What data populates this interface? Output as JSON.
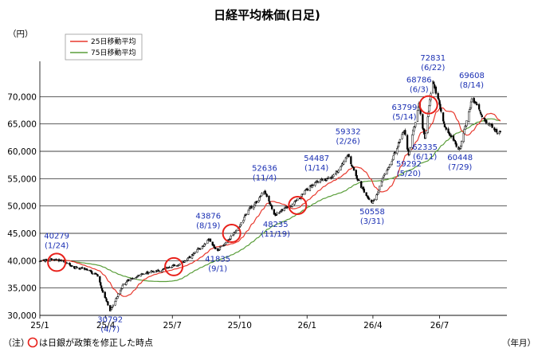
{
  "chart_data": {
    "type": "candlestick",
    "title": "日経平均株価(日足)",
    "y_unit": "（円）",
    "x_unit": "（年月）",
    "ylim": [
      30000,
      75000
    ],
    "y_ticks": [
      "30,000",
      "35,000",
      "40,000",
      "45,000",
      "50,000",
      "55,000",
      "60,000",
      "65,000",
      "70,000"
    ],
    "y_tick_values": [
      30000,
      35000,
      40000,
      45000,
      50000,
      55000,
      60000,
      65000,
      70000
    ],
    "x_ticks": [
      "25/1",
      "25/4",
      "25/7",
      "25/10",
      "26/1",
      "26/4",
      "26/7"
    ],
    "x_range": [
      "2025-01-01",
      "2026-10-01"
    ],
    "grid": true,
    "legend_position": "top-left",
    "series": [
      {
        "name": "25日移動平均",
        "color": "#e8392e"
      },
      {
        "name": "75日移動平均",
        "color": "#5a9e3a"
      }
    ],
    "price_path": [
      {
        "date": "2025-01-01",
        "value": 39900
      },
      {
        "date": "2025-01-24",
        "value": 40279
      },
      {
        "date": "2025-02-20",
        "value": 38800
      },
      {
        "date": "2025-03-20",
        "value": 37500
      },
      {
        "date": "2025-04-07",
        "value": 30792
      },
      {
        "date": "2025-04-25",
        "value": 35800
      },
      {
        "date": "2025-05-20",
        "value": 37600
      },
      {
        "date": "2025-06-25",
        "value": 38700
      },
      {
        "date": "2025-07-20",
        "value": 40000
      },
      {
        "date": "2025-08-19",
        "value": 43876
      },
      {
        "date": "2025-09-01",
        "value": 41835
      },
      {
        "date": "2025-09-25",
        "value": 45300
      },
      {
        "date": "2025-10-10",
        "value": 48500
      },
      {
        "date": "2025-11-04",
        "value": 52636
      },
      {
        "date": "2025-11-19",
        "value": 48235
      },
      {
        "date": "2025-12-15",
        "value": 50800
      },
      {
        "date": "2026-01-14",
        "value": 54487
      },
      {
        "date": "2026-02-05",
        "value": 55500
      },
      {
        "date": "2026-02-26",
        "value": 59332
      },
      {
        "date": "2026-03-15",
        "value": 53500
      },
      {
        "date": "2026-03-31",
        "value": 50558
      },
      {
        "date": "2026-04-20",
        "value": 56500
      },
      {
        "date": "2026-05-14",
        "value": 63799
      },
      {
        "date": "2026-05-20",
        "value": 59292
      },
      {
        "date": "2026-06-03",
        "value": 68786
      },
      {
        "date": "2026-06-11",
        "value": 62335
      },
      {
        "date": "2026-06-22",
        "value": 72831
      },
      {
        "date": "2026-07-10",
        "value": 64000
      },
      {
        "date": "2026-07-29",
        "value": 60448
      },
      {
        "date": "2026-08-14",
        "value": 69608
      },
      {
        "date": "2026-09-05",
        "value": 65000
      },
      {
        "date": "2026-09-22",
        "value": 63500
      }
    ],
    "annotations": [
      {
        "value": "40279",
        "date_label": "(1/24)",
        "date": "2025-01-24",
        "price": 40279,
        "pos": "above"
      },
      {
        "value": "30792",
        "date_label": "(4/7)",
        "date": "2025-04-07",
        "price": 30792,
        "pos": "below"
      },
      {
        "value": "43876",
        "date_label": "(8/19)",
        "date": "2025-08-19",
        "price": 43876,
        "pos": "above"
      },
      {
        "value": "41835",
        "date_label": "(9/1)",
        "date": "2025-09-01",
        "price": 41835,
        "pos": "below"
      },
      {
        "value": "52636",
        "date_label": "(11/4)",
        "date": "2025-11-04",
        "price": 52636,
        "pos": "above"
      },
      {
        "value": "48235",
        "date_label": "(11/19)",
        "date": "2025-11-19",
        "price": 48235,
        "pos": "below"
      },
      {
        "value": "54487",
        "date_label": "(1/14)",
        "date": "2026-01-14",
        "price": 54487,
        "pos": "above"
      },
      {
        "value": "59332",
        "date_label": "(2/26)",
        "date": "2026-02-26",
        "price": 59332,
        "pos": "above"
      },
      {
        "value": "50558",
        "date_label": "(3/31)",
        "date": "2026-03-31",
        "price": 50558,
        "pos": "below"
      },
      {
        "value": "63799",
        "date_label": "(5/14)",
        "date": "2026-05-14",
        "price": 63799,
        "pos": "above"
      },
      {
        "value": "59292",
        "date_label": "(5/20)",
        "date": "2026-05-20",
        "price": 59292,
        "pos": "below"
      },
      {
        "value": "68786",
        "date_label": "(6/3)",
        "date": "2026-06-03",
        "price": 68786,
        "pos": "above"
      },
      {
        "value": "62335",
        "date_label": "(6/11)",
        "date": "2026-06-11",
        "price": 62335,
        "pos": "below"
      },
      {
        "value": "72831",
        "date_label": "(6/22)",
        "date": "2026-06-22",
        "price": 72831,
        "pos": "above"
      },
      {
        "value": "60448",
        "date_label": "(7/29)",
        "date": "2026-07-29",
        "price": 60448,
        "pos": "below"
      },
      {
        "value": "69608",
        "date_label": "(8/14)",
        "date": "2026-08-14",
        "price": 69608,
        "pos": "above"
      }
    ],
    "boj_policy_change_markers": [
      {
        "date": "2025-01-24",
        "price": 39700
      },
      {
        "date": "2025-07-03",
        "price": 38900
      },
      {
        "date": "2025-09-20",
        "price": 45000
      },
      {
        "date": "2025-12-19",
        "price": 50100
      },
      {
        "date": "2026-06-16",
        "price": 68500
      }
    ],
    "footnote": {
      "prefix": "（注）",
      "text": "は日銀が政策を修正した時点"
    }
  }
}
